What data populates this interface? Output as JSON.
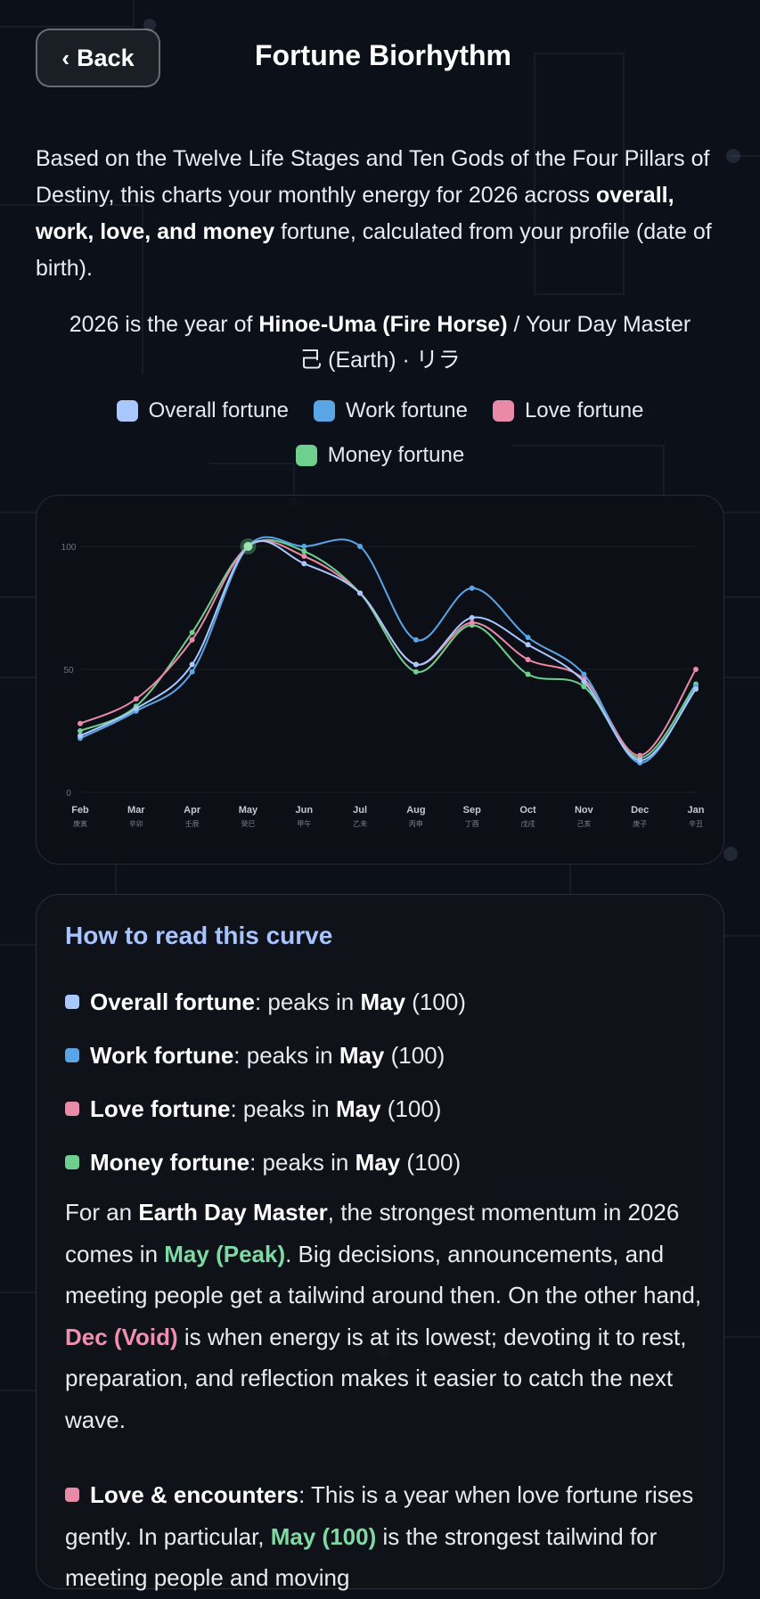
{
  "header": {
    "back_label": "Back",
    "title": "Fortune Biorhythm"
  },
  "intro": {
    "part1": "Based on the Twelve Life Stages and Ten Gods of the Four Pillars of Destiny, this charts your monthly energy for 2026 across ",
    "bold": "overall, work, love, and money",
    "part2": " fortune, calculated from your profile (date of birth)."
  },
  "year_line": {
    "prefix": "2026 is the year of ",
    "year_name": "Hinoe-Uma (Fire Horse)",
    "middle": " / Your Day Master ",
    "day_master": "己 (Earth) · リラ"
  },
  "legend": [
    {
      "label": "Overall fortune",
      "color": "#a9c8ff"
    },
    {
      "label": "Work fortune",
      "color": "#5aa5e6"
    },
    {
      "label": "Love fortune",
      "color": "#e98aa8"
    },
    {
      "label": "Money fortune",
      "color": "#6fcf8e"
    }
  ],
  "chart_data": {
    "type": "line",
    "ylim": [
      0,
      100
    ],
    "yticks": [
      0,
      50,
      100
    ],
    "grid": true,
    "legend_placement": "top",
    "categories": [
      "Feb",
      "Mar",
      "Apr",
      "May",
      "Jun",
      "Jul",
      "Aug",
      "Sep",
      "Oct",
      "Nov",
      "Dec",
      "Jan"
    ],
    "subcategories": [
      "庚寅",
      "辛卯",
      "壬辰",
      "癸巳",
      "甲午",
      "乙未",
      "丙申",
      "丁酉",
      "戊戌",
      "己亥",
      "庚子",
      "辛丑"
    ],
    "series": [
      {
        "name": "Overall fortune",
        "color": "#a9c8ff",
        "values": [
          23,
          34,
          52,
          100,
          93,
          81,
          52,
          71,
          60,
          45,
          13,
          42
        ]
      },
      {
        "name": "Work fortune",
        "color": "#5aa5e6",
        "values": [
          22,
          33,
          49,
          100,
          100,
          100,
          62,
          83,
          63,
          48,
          12,
          43
        ]
      },
      {
        "name": "Love fortune",
        "color": "#e98aa8",
        "values": [
          28,
          38,
          62,
          100,
          96,
          81,
          52,
          69,
          54,
          46,
          15,
          50
        ]
      },
      {
        "name": "Money fortune",
        "color": "#6fcf8e",
        "values": [
          25,
          35,
          65,
          100,
          98,
          81,
          49,
          68,
          48,
          43,
          14,
          44
        ]
      }
    ]
  },
  "how_to_read": {
    "title": "How to read this curve",
    "peaks": [
      {
        "name": "Overall fortune",
        "text": ": peaks in ",
        "month": "May",
        "value": " (100)",
        "color": "#a9c8ff"
      },
      {
        "name": "Work fortune",
        "text": ": peaks in ",
        "month": "May",
        "value": " (100)",
        "color": "#5aa5e6"
      },
      {
        "name": "Love fortune",
        "text": ": peaks in ",
        "month": "May",
        "value": " (100)",
        "color": "#e98aa8"
      },
      {
        "name": "Money fortune",
        "text": ": peaks in ",
        "month": "May",
        "value": " (100)",
        "color": "#6fcf8e"
      }
    ],
    "analysis": {
      "p1": "For an ",
      "b1": "Earth Day Master",
      "p2": ", the strongest momentum in 2026 comes in ",
      "peak": "May (Peak)",
      "p3": ". Big decisions, announcements, and meeting people get a tailwind around then. On the other hand, ",
      "void": "Dec (Void)",
      "p4": " is when energy is at its lowest; devoting it to rest, preparation, and reflection makes it easier to catch the next wave."
    },
    "love": {
      "label": "Love & encounters",
      "p1": ": This is a year when love fortune rises gently. In particular, ",
      "highlight": "May (100)",
      "p2": " is the strongest tailwind for meeting people and moving"
    }
  }
}
